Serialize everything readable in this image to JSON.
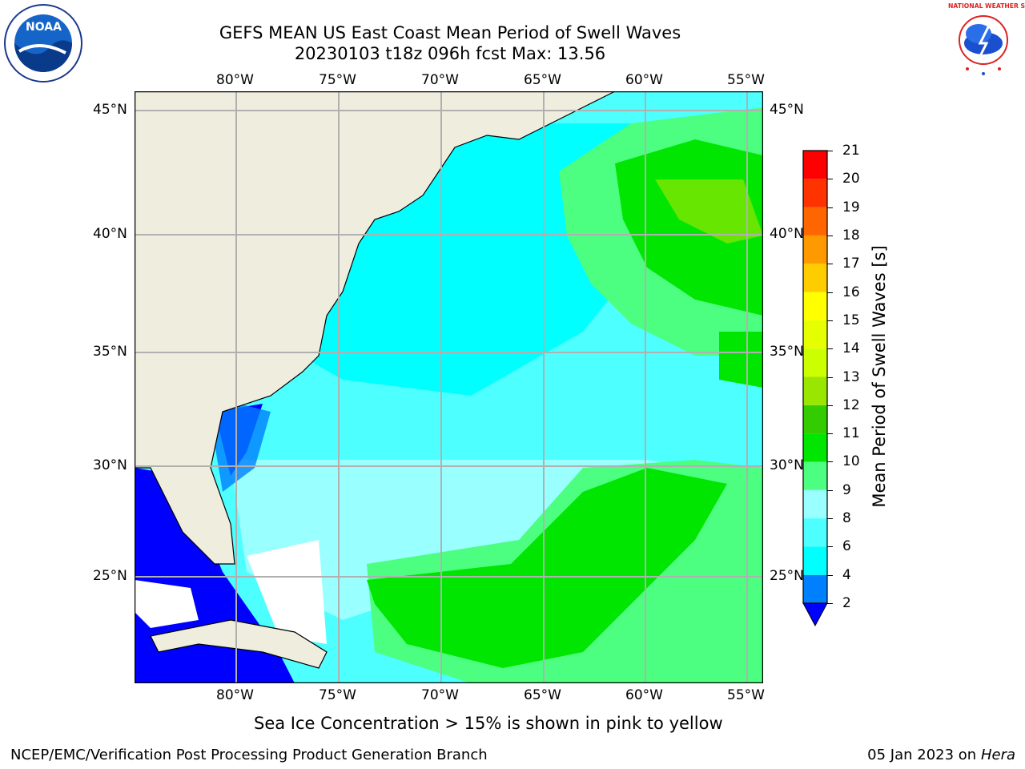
{
  "header": {
    "title_line1": "GEFS MEAN US East Coast Mean Period of Swell Waves",
    "title_line2": "20230103 t18z 096h fcst   Max: 13.56"
  },
  "logos": {
    "noaa_text": "NOAA",
    "nws_text": "NATIONAL WEATHER SERVICE"
  },
  "map": {
    "lon_labels": [
      "80°W",
      "75°W",
      "70°W",
      "65°W",
      "60°W",
      "55°W"
    ],
    "lat_labels": [
      "45°N",
      "40°N",
      "35°N",
      "30°N",
      "25°N"
    ],
    "colors": {
      "land": "#efedde",
      "deep_blue": "#0000ff",
      "blue": "#0080ff",
      "cyan": "#00ffff",
      "light_cyan": "#4dffff",
      "pale_cyan": "#99ffff",
      "light_green": "#4dff80",
      "green": "#00e600",
      "bright_green": "#33cc33",
      "yellow_green": "#ccff00",
      "grid": "#b0b0b0"
    }
  },
  "colorbar": {
    "label": "Mean Period of Swell Waves [s]",
    "ticks": [
      "2",
      "4",
      "6",
      "8",
      "9",
      "10",
      "11",
      "12",
      "13",
      "14",
      "15",
      "16",
      "17",
      "18",
      "19",
      "20",
      "21"
    ],
    "colors": [
      "#0080ff",
      "#00ffff",
      "#4dffff",
      "#99ffff",
      "#4dff80",
      "#00e600",
      "#33cc00",
      "#99e600",
      "#ccff00",
      "#e6ff00",
      "#ffff00",
      "#ffcc00",
      "#ff9900",
      "#ff6600",
      "#ff3300",
      "#ff0000"
    ],
    "extend_color": "#0000ff"
  },
  "footer": {
    "note": "Sea Ice Concentration > 15% is shown in pink to yellow",
    "credit": "NCEP/EMC/Verification Post Processing Product Generation Branch",
    "date": "05 Jan 2023 on ",
    "host": "Hera"
  }
}
